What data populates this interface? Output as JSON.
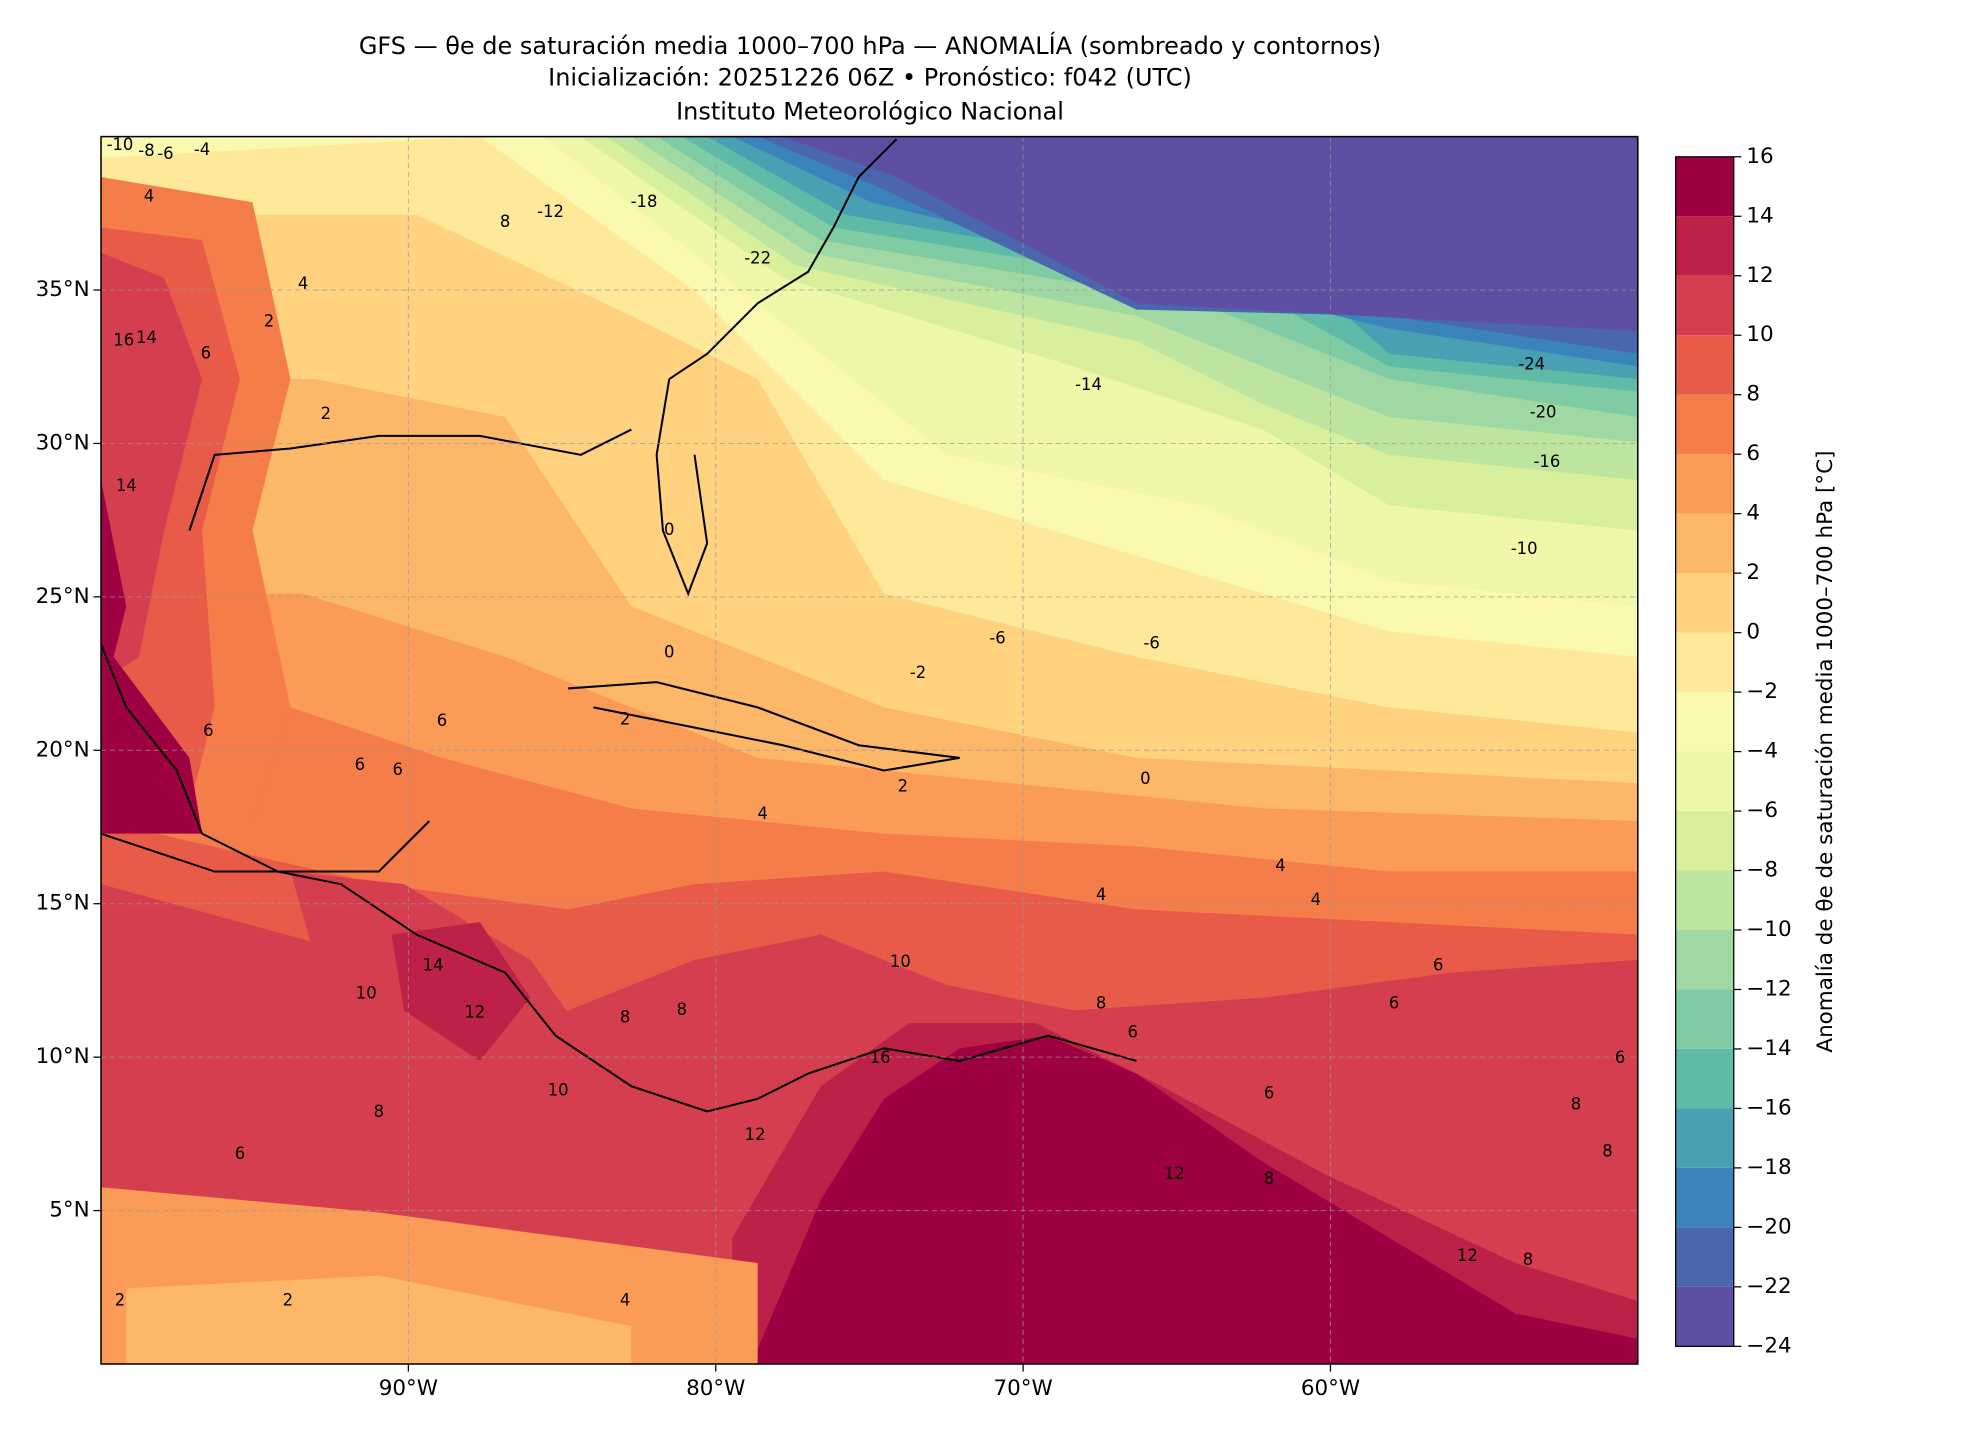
{
  "chart_data": {
    "type": "contour_map",
    "title": "GFS — θe de saturación media 1000–700 hPa — ANOMALÍA (sombreado y contornos)",
    "subtitle": "Inicialización: 20251226 06Z   •   Pronóstico: f042 (UTC)",
    "attribution": "Instituto Meteorológico Nacional",
    "xlim": [
      -100,
      -50
    ],
    "ylim": [
      0,
      40
    ],
    "xticks": [
      {
        "value": -90,
        "label": "90°W"
      },
      {
        "value": -80,
        "label": "80°W"
      },
      {
        "value": -70,
        "label": "70°W"
      },
      {
        "value": -60,
        "label": "60°W"
      }
    ],
    "yticks": [
      {
        "value": 5,
        "label": "5°N"
      },
      {
        "value": 10,
        "label": "10°N"
      },
      {
        "value": 15,
        "label": "15°N"
      },
      {
        "value": 20,
        "label": "20°N"
      },
      {
        "value": 25,
        "label": "25°N"
      },
      {
        "value": 30,
        "label": "30°N"
      },
      {
        "value": 35,
        "label": "35°N"
      }
    ],
    "grid": true,
    "colorbar": {
      "label": "Anomalía de θe de saturación media 1000–700 hPa [°C]",
      "lim": [
        -24,
        16
      ],
      "ticks": [
        {
          "value": -24,
          "label": "−24"
        },
        {
          "value": -22,
          "label": "−22"
        },
        {
          "value": -20,
          "label": "−20"
        },
        {
          "value": -18,
          "label": "−18"
        },
        {
          "value": -16,
          "label": "−16"
        },
        {
          "value": -14,
          "label": "−14"
        },
        {
          "value": -12,
          "label": "−12"
        },
        {
          "value": -10,
          "label": "−10"
        },
        {
          "value": -8,
          "label": "−8"
        },
        {
          "value": -6,
          "label": "−6"
        },
        {
          "value": -4,
          "label": "−4"
        },
        {
          "value": -2,
          "label": "−2"
        },
        0,
        2,
        4,
        6,
        8,
        10,
        12,
        14,
        16
      ],
      "colors": [
        "#5e4fa2",
        "#4a67ad",
        "#3b84bb",
        "#48a0b2",
        "#5fbaa7",
        "#7fcba4",
        "#a0d8a4",
        "#bee5a0",
        "#d8ef9b",
        "#eef8a8",
        "#fbf8b0",
        "#fee99a",
        "#fed27f",
        "#fdb768",
        "#fa9b58",
        "#f57d4a",
        "#e85b48",
        "#d53e4f",
        "#bd2148",
        "#9e0142"
      ]
    },
    "contour_labels": [
      -10,
      -8,
      -6,
      -4,
      4,
      4,
      2,
      6,
      16,
      14,
      14,
      2,
      8,
      -12,
      -18,
      -22,
      -14,
      -24,
      -20,
      -16,
      -10,
      -6,
      -6,
      0,
      0,
      -2,
      6,
      2,
      6,
      6,
      6,
      0,
      4,
      2,
      4,
      4,
      4,
      10,
      10,
      12,
      14,
      8,
      8,
      8,
      6,
      6,
      6,
      6,
      6,
      8,
      8,
      10,
      8,
      6,
      12,
      16,
      12,
      8,
      8,
      12,
      4,
      2,
      2
    ]
  }
}
